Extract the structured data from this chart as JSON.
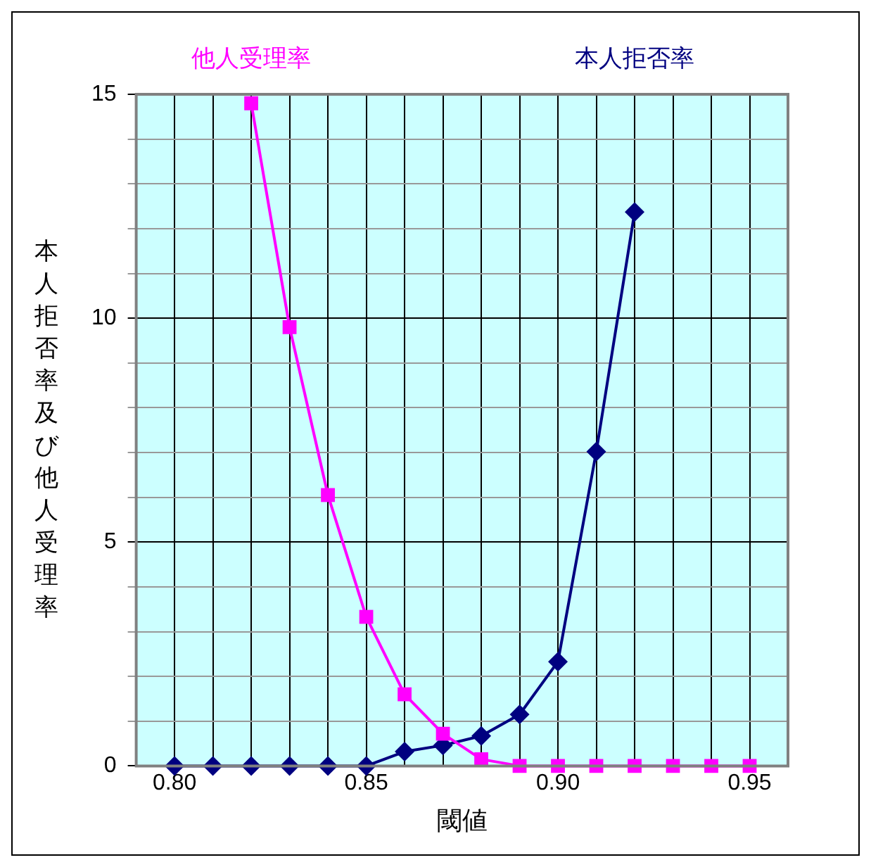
{
  "chart_data": {
    "type": "line",
    "xlabel": "閾値",
    "ylabel": "本人拒否率及び他人受理率",
    "x": [
      0.8,
      0.81,
      0.82,
      0.83,
      0.84,
      0.85,
      0.86,
      0.87,
      0.88,
      0.89,
      0.9,
      0.91,
      0.92,
      0.93,
      0.94,
      0.95
    ],
    "series": [
      {
        "name": "他人受理率",
        "color": "#ff00ff",
        "marker": "square",
        "values": [
          null,
          null,
          14.8,
          9.8,
          6.05,
          3.33,
          1.6,
          0.72,
          0.15,
          0,
          0,
          0,
          0,
          0,
          0,
          0
        ]
      },
      {
        "name": "本人拒否率",
        "color": "#000080",
        "marker": "diamond",
        "values": [
          0,
          0,
          0,
          0,
          0,
          0,
          0.32,
          0.46,
          0.67,
          1.15,
          2.33,
          7.02,
          12.37,
          null,
          null,
          null
        ]
      }
    ],
    "xlim": [
      0.79,
      0.96
    ],
    "xticks": [
      {
        "value": 0.8,
        "label": "0.80"
      },
      {
        "value": 0.81,
        "label": null
      },
      {
        "value": 0.82,
        "label": null
      },
      {
        "value": 0.83,
        "label": null
      },
      {
        "value": 0.84,
        "label": null
      },
      0.85,
      {
        "value": 0.86,
        "label": null
      },
      {
        "value": 0.87,
        "label": null
      },
      {
        "value": 0.88,
        "label": null
      },
      {
        "value": 0.89,
        "label": null
      },
      {
        "value": 0.9,
        "label": "0.90"
      },
      {
        "value": 0.91,
        "label": null
      },
      {
        "value": 0.92,
        "label": null
      },
      {
        "value": 0.93,
        "label": null
      },
      {
        "value": 0.94,
        "label": null
      },
      0.95
    ],
    "ylim": [
      0,
      15
    ],
    "yticks": [
      0,
      {
        "value": 1,
        "label": null
      },
      {
        "value": 2,
        "label": null
      },
      {
        "value": 3,
        "label": null
      },
      {
        "value": 4,
        "label": null
      },
      5,
      {
        "value": 6,
        "label": null
      },
      {
        "value": 7,
        "label": null
      },
      {
        "value": 8,
        "label": null
      },
      {
        "value": 9,
        "label": null
      },
      10,
      {
        "value": 11,
        "label": null
      },
      {
        "value": 12,
        "label": null
      },
      {
        "value": 13,
        "label": null
      },
      {
        "value": 14,
        "label": null
      },
      15
    ],
    "grid": true,
    "legend": false,
    "line_style": "solid"
  }
}
